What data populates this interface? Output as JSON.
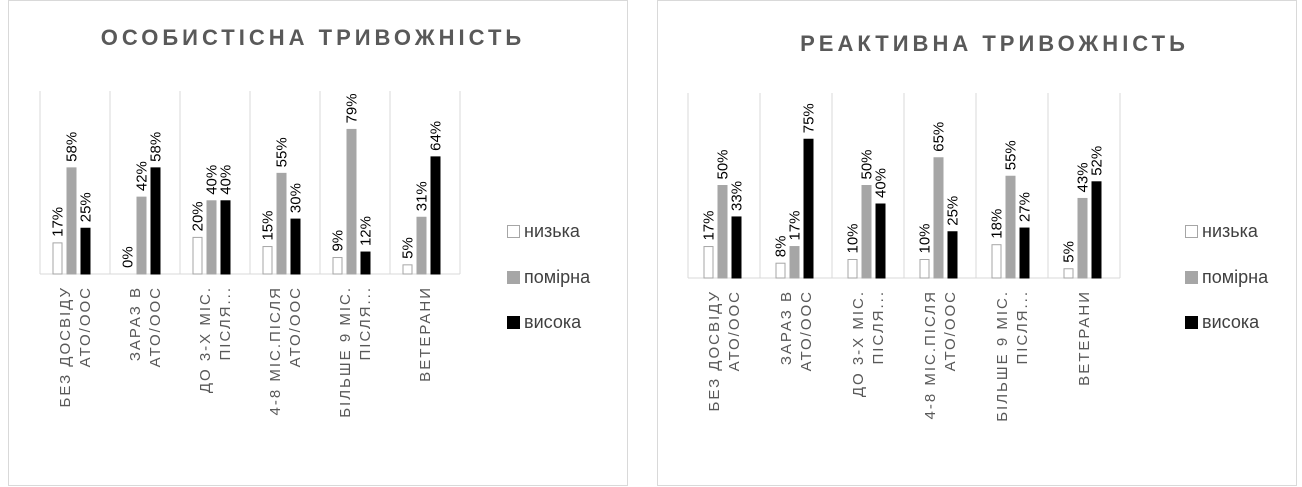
{
  "chart_data": [
    {
      "type": "bar",
      "title": "ОСОБИСТІСНА ТРИВОЖНІСТЬ",
      "categories": [
        "БЕЗ ДОСВІДУ|АТО/ООС",
        "ЗАРАЗ В|АТО/ООС",
        "ДО 3-Х МІС.|ПІСЛЯ...",
        "4-8 МІС.ПІСЛЯ|АТО/ООС",
        "БІЛЬШЕ 9 МІС.|ПІСЛЯ...",
        "ВЕТЕРАНИ"
      ],
      "series": [
        {
          "name": "низька",
          "values": [
            17,
            0,
            20,
            15,
            9,
            5
          ]
        },
        {
          "name": "помірна",
          "values": [
            58,
            42,
            40,
            55,
            79,
            31
          ]
        },
        {
          "name": "висока",
          "values": [
            25,
            58,
            40,
            30,
            12,
            64
          ]
        }
      ],
      "value_labels": [
        [
          "17%",
          "0%",
          "20%",
          "15%",
          "9%",
          "5%"
        ],
        [
          "58%",
          "42%",
          "40%",
          "55%",
          "79%",
          "31%"
        ],
        [
          "25%",
          "58%",
          "40%",
          "30%",
          "12%",
          "64%"
        ]
      ],
      "ylim": [
        0,
        100
      ],
      "legend_position": "right"
    },
    {
      "type": "bar",
      "title": "РЕАКТИВНА ТРИВОЖНІСТЬ",
      "categories": [
        "БЕЗ ДОСВІДУ|АТО/ООС",
        "ЗАРАЗ В|АТО/ООС",
        "ДО 3-Х МІС.|ПІСЛЯ...",
        "4-8 МІС.ПІСЛЯ|АТО/ООС",
        "БІЛЬШЕ 9 МІС.|ПІСЛЯ...",
        "ВЕТЕРАНИ"
      ],
      "series": [
        {
          "name": "низька",
          "values": [
            17,
            8,
            10,
            10,
            18,
            5
          ]
        },
        {
          "name": "помірна",
          "values": [
            50,
            17,
            50,
            65,
            55,
            43
          ]
        },
        {
          "name": "висока",
          "values": [
            33,
            75,
            40,
            25,
            27,
            52
          ]
        }
      ],
      "value_labels": [
        [
          "17%",
          "8%",
          "10%",
          "10%",
          "18%",
          "5%"
        ],
        [
          "50%",
          "17%",
          "50%",
          "65%",
          "55%",
          "43%"
        ],
        [
          "33%",
          "75%",
          "40%",
          "25%",
          "27%",
          "52%"
        ]
      ],
      "ylim": [
        0,
        100
      ],
      "legend_position": "right"
    }
  ],
  "series_colors": {
    "низька": {
      "fill": "#ffffff",
      "stroke": "#a6a6a6"
    },
    "помірна": {
      "fill": "#a6a6a6",
      "stroke": "#a6a6a6"
    },
    "висока": {
      "fill": "#000000",
      "stroke": "#000000"
    }
  }
}
